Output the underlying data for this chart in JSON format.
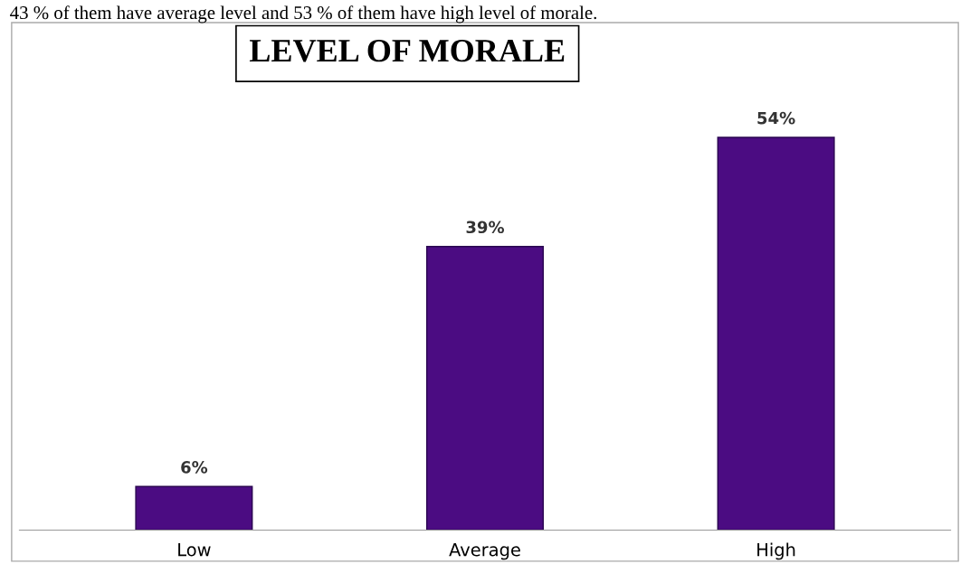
{
  "chart_data": {
    "type": "bar",
    "title": "LEVEL OF MORALE",
    "categories": [
      "Low",
      "Average",
      "High"
    ],
    "values": [
      6,
      39,
      54
    ],
    "value_labels": [
      "6%",
      "39%",
      "54%"
    ],
    "color": "#4b0c82",
    "annotations": [
      "43 % of them have average level and 53 % of them have high level of morale."
    ]
  }
}
